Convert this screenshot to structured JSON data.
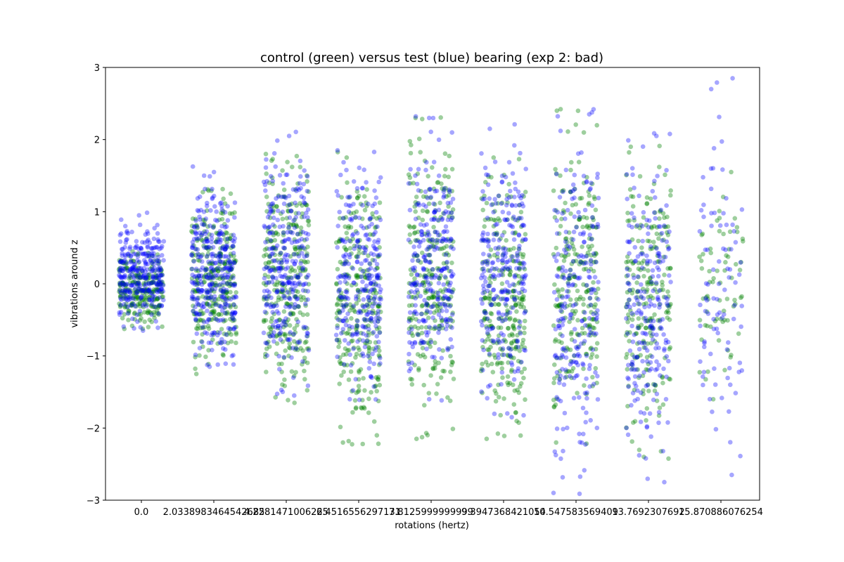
{
  "chart_data": {
    "type": "scatter",
    "title": "control (green) versus test (blue) bearing (exp 2: bad)",
    "xlabel": "rotations (hertz)",
    "ylabel": "vibrations around z",
    "ylim": [
      -3,
      3
    ],
    "y_ticks": [
      "−3",
      "−2",
      "−1",
      "0",
      "1",
      "2",
      "3"
    ],
    "y_tick_values": [
      -3,
      -2,
      -1,
      0,
      1,
      2,
      3
    ],
    "categories": [
      "0.0",
      "2.0338983464542685",
      "4.2281471006225",
      "6.4516556297131",
      "7.8125999999999",
      "9.3947368421054",
      "10.547583569409",
      "13.7692307692",
      "15.870886076254"
    ],
    "colors": {
      "control": "#008000",
      "test": "#0000ff"
    },
    "series": [
      {
        "name": "control (green)",
        "color": "#008000",
        "spread": [
          {
            "category": "0.0",
            "y_min": -0.6,
            "y_max": 0.45,
            "points": 260
          },
          {
            "category": "2.0338983464542685",
            "y_min": -1.25,
            "y_max": 1.25,
            "points": 300
          },
          {
            "category": "4.2281471006225",
            "y_min": -1.65,
            "y_max": 1.8,
            "points": 300
          },
          {
            "category": "6.4516556297131",
            "y_min": -2.2,
            "y_max": 1.75,
            "points": 280
          },
          {
            "category": "7.8125999999999",
            "y_min": -2.15,
            "y_max": 2.3,
            "points": 280
          },
          {
            "category": "9.3947368421054",
            "y_min": -2.15,
            "y_max": 1.75,
            "points": 280
          },
          {
            "category": "10.547583569409",
            "y_min": -2.2,
            "y_max": 2.4,
            "points": 250
          },
          {
            "category": "13.7692307692",
            "y_min": -2.4,
            "y_max": 1.9,
            "points": 230
          },
          {
            "category": "15.870886076254",
            "y_min": -1.6,
            "y_max": 1.55,
            "points": 70
          }
        ]
      },
      {
        "name": "test (blue)",
        "color": "#0000ff",
        "spread": [
          {
            "category": "0.0",
            "y_min": -0.65,
            "y_max": 0.95,
            "points": 300
          },
          {
            "category": "2.0338983464542685",
            "y_min": -1.15,
            "y_max": 1.55,
            "points": 320
          },
          {
            "category": "4.2281471006225",
            "y_min": -1.55,
            "y_max": 2.05,
            "points": 280
          },
          {
            "category": "6.4516556297131",
            "y_min": -1.6,
            "y_max": 1.85,
            "points": 260
          },
          {
            "category": "7.8125999999999",
            "y_min": -1.6,
            "y_max": 2.3,
            "points": 260
          },
          {
            "category": "9.3947368421054",
            "y_min": -1.85,
            "y_max": 2.15,
            "points": 250
          },
          {
            "category": "10.547583569409",
            "y_min": -2.9,
            "y_max": 2.35,
            "points": 230
          },
          {
            "category": "13.7692307692",
            "y_min": -2.75,
            "y_max": 2.05,
            "points": 220
          },
          {
            "category": "15.870886076254",
            "y_min": -2.65,
            "y_max": 2.85,
            "points": 90
          }
        ]
      }
    ],
    "grid": false,
    "legend": "none"
  }
}
